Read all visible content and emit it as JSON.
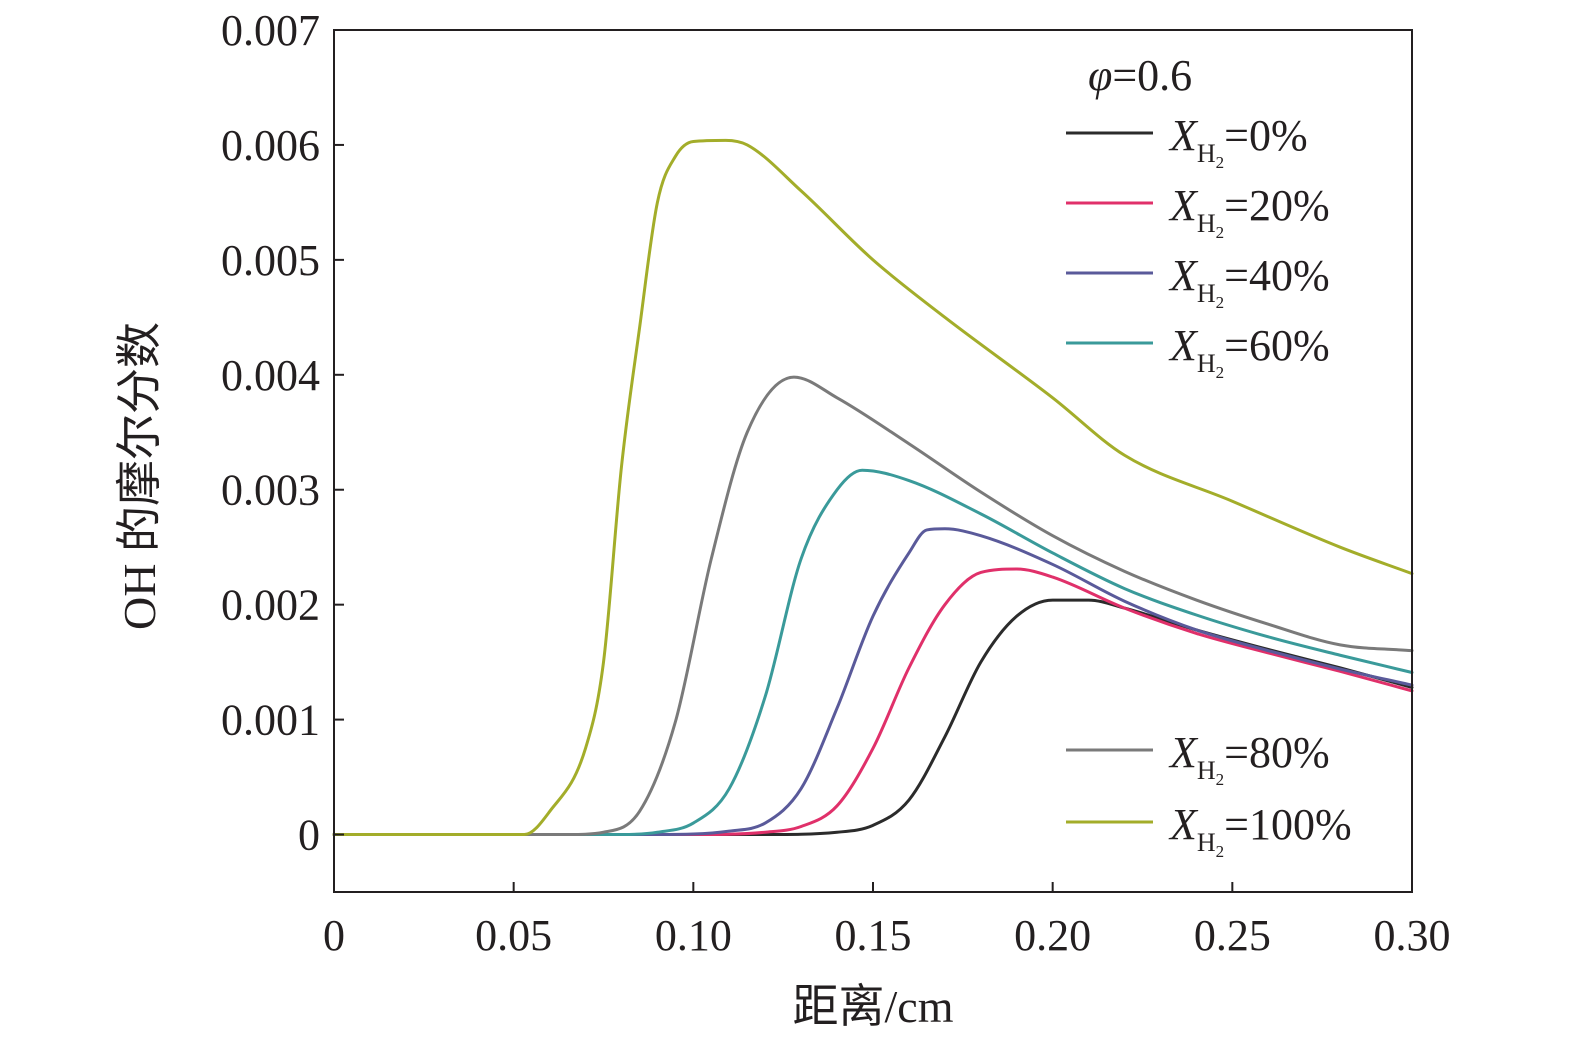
{
  "chart_data": {
    "type": "line",
    "xlabel": "距离/cm",
    "ylabel": "OH 的摩尔分数",
    "xlim": [
      0,
      0.3
    ],
    "ylim": [
      -0.0005,
      0.007
    ],
    "x_ticks": [
      0,
      0.05,
      0.1,
      0.15,
      0.2,
      0.25,
      0.3
    ],
    "x_tick_labels": [
      "0",
      "0.05",
      "0.10",
      "0.15",
      "0.20",
      "0.25",
      "0.30"
    ],
    "y_ticks": [
      0,
      0.001,
      0.002,
      0.003,
      0.004,
      0.005,
      0.006,
      0.007
    ],
    "y_tick_labels": [
      "0",
      "0.001",
      "0.002",
      "0.003",
      "0.004",
      "0.005",
      "0.006",
      "0.007"
    ],
    "legend_title": {
      "symbol": "φ",
      "value": "=0.6"
    },
    "legend_placement": "right",
    "series": [
      {
        "name": "X_H2=0%",
        "legend": {
          "var": "X",
          "sub": "H",
          "subsub": "2",
          "value": "=0%"
        },
        "color": "#2b2b2b",
        "x": [
          0,
          0.05,
          0.12,
          0.14,
          0.15,
          0.16,
          0.17,
          0.18,
          0.19,
          0.2,
          0.21,
          0.22,
          0.24,
          0.26,
          0.28,
          0.3
        ],
        "y": [
          0,
          0,
          0,
          2e-05,
          8e-05,
          0.0003,
          0.00085,
          0.0015,
          0.0019,
          0.00204,
          0.00204,
          0.00197,
          0.00178,
          0.00161,
          0.00145,
          0.00128
        ]
      },
      {
        "name": "X_H2=20%",
        "legend": {
          "var": "X",
          "sub": "H",
          "subsub": "2",
          "value": "=20%"
        },
        "color": "#e0306a",
        "x": [
          0,
          0.05,
          0.1,
          0.12,
          0.13,
          0.14,
          0.15,
          0.16,
          0.17,
          0.18,
          0.19,
          0.2,
          0.22,
          0.24,
          0.26,
          0.28,
          0.3
        ],
        "y": [
          0,
          0,
          0,
          2e-05,
          7e-05,
          0.00025,
          0.00075,
          0.00145,
          0.002,
          0.00228,
          0.00231,
          0.00224,
          0.00197,
          0.00175,
          0.00158,
          0.00142,
          0.00125
        ]
      },
      {
        "name": "X_H2=40%",
        "legend": {
          "var": "X",
          "sub": "H",
          "subsub": "2",
          "value": "=40%"
        },
        "color": "#5a5a9a",
        "x": [
          0,
          0.05,
          0.09,
          0.11,
          0.12,
          0.13,
          0.14,
          0.15,
          0.16,
          0.165,
          0.17,
          0.18,
          0.2,
          0.22,
          0.24,
          0.26,
          0.28,
          0.3
        ],
        "y": [
          0,
          0,
          0,
          3e-05,
          0.0001,
          0.0004,
          0.0011,
          0.0019,
          0.00245,
          0.00265,
          0.00266,
          0.0026,
          0.00235,
          0.00203,
          0.00178,
          0.0016,
          0.00144,
          0.0013
        ]
      },
      {
        "name": "X_H2=60%",
        "legend": {
          "var": "X",
          "sub": "H",
          "subsub": "2",
          "value": "=60%"
        },
        "color": "#3a9a9a",
        "x": [
          0,
          0.05,
          0.08,
          0.09,
          0.1,
          0.11,
          0.12,
          0.13,
          0.14,
          0.147,
          0.16,
          0.18,
          0.2,
          0.22,
          0.24,
          0.26,
          0.28,
          0.3
        ],
        "y": [
          0,
          0,
          0,
          2e-05,
          0.0001,
          0.0004,
          0.0012,
          0.0024,
          0.003,
          0.00317,
          0.00308,
          0.00279,
          0.00245,
          0.00214,
          0.00191,
          0.00172,
          0.00156,
          0.00141
        ]
      },
      {
        "name": "X_H2=80%",
        "legend": {
          "var": "X",
          "sub": "H",
          "subsub": "2",
          "value": "=80%"
        },
        "color": "#7a7a7a",
        "x": [
          0,
          0.05,
          0.065,
          0.075,
          0.085,
          0.095,
          0.105,
          0.115,
          0.128,
          0.14,
          0.16,
          0.18,
          0.2,
          0.22,
          0.24,
          0.26,
          0.28,
          0.3
        ],
        "y": [
          0,
          0,
          0,
          2e-05,
          0.0002,
          0.00098,
          0.0024,
          0.0035,
          0.00398,
          0.0038,
          0.0034,
          0.00298,
          0.0026,
          0.00229,
          0.00204,
          0.00183,
          0.00165,
          0.0016
        ]
      },
      {
        "name": "X_H2=100%",
        "legend": {
          "var": "X",
          "sub": "H",
          "subsub": "2",
          "value": "=100%"
        },
        "color": "#a3ad2a",
        "x": [
          0,
          0.053,
          0.06,
          0.07,
          0.075,
          0.08,
          0.085,
          0.09,
          0.095,
          0.1,
          0.109,
          0.115,
          0.13,
          0.15,
          0.17,
          0.2,
          0.22,
          0.25,
          0.28,
          0.3
        ],
        "y": [
          0,
          0,
          0.0002,
          0.00075,
          0.0015,
          0.0032,
          0.0044,
          0.0055,
          0.0059,
          0.00603,
          0.00604,
          0.006,
          0.0056,
          0.005,
          0.0045,
          0.0038,
          0.0033,
          0.0029,
          0.0025,
          0.00227
        ]
      }
    ]
  }
}
